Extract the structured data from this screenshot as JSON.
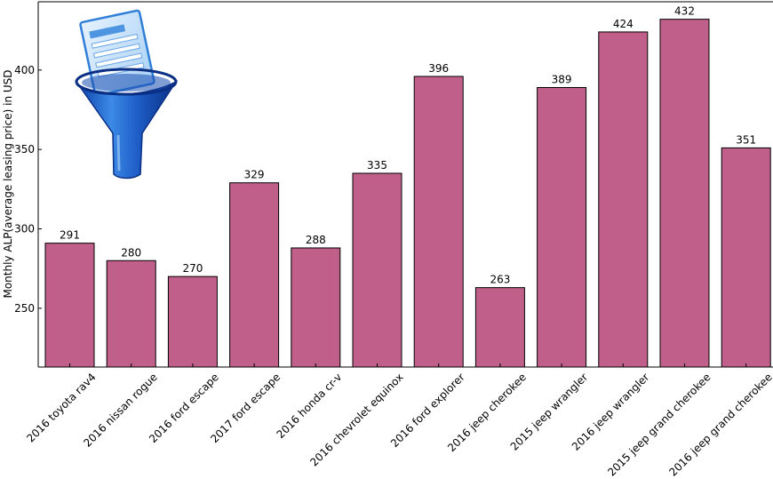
{
  "chart_data": {
    "type": "bar",
    "title": "",
    "xlabel": "",
    "ylabel": "Monthly ALP(average leasing price) in USD",
    "categories": [
      "2016 toyota rav4",
      "2016 nissan rogue",
      "2016 ford escape",
      "2017 ford escape",
      "2016 honda cr-v",
      "2016 chevrolet equinox",
      "2016 ford explorer",
      "2016 jeep cherokee",
      "2015 jeep wrangler",
      "2016 jeep wrangler",
      "2015 jeep grand cherokee",
      "2016 jeep grand cherokee"
    ],
    "values": [
      291,
      280,
      270,
      329,
      288,
      335,
      396,
      263,
      389,
      424,
      432,
      351
    ],
    "value_labels": [
      "291",
      "280",
      "270",
      "329",
      "288",
      "335",
      "396",
      "263",
      "389",
      "424",
      "432",
      "351"
    ],
    "ylim": [
      213,
      443
    ],
    "yticks": [
      250,
      300,
      350,
      400
    ],
    "ytick_labels": [
      "250",
      "300",
      "350",
      "400"
    ],
    "grid": false,
    "bar_color": "#bf5f8a",
    "bar_edge_color": "#000000"
  },
  "logo": {
    "icon": "funnel-document-icon"
  }
}
